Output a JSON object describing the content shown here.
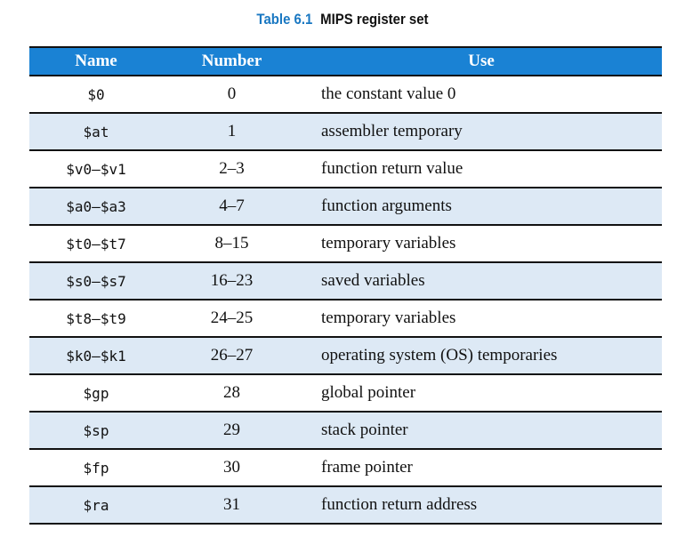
{
  "caption": {
    "number": "Table 6.1",
    "title": "MIPS register set"
  },
  "table": {
    "headers": [
      "Name",
      "Number",
      "Use"
    ],
    "rows": [
      {
        "name": "$0",
        "number": "0",
        "use": "the constant value 0"
      },
      {
        "name": "$at",
        "number": "1",
        "use": "assembler temporary"
      },
      {
        "name": "$v0–$v1",
        "number": "2–3",
        "use": "function return value"
      },
      {
        "name": "$a0–$a3",
        "number": "4–7",
        "use": "function arguments"
      },
      {
        "name": "$t0–$t7",
        "number": "8–15",
        "use": "temporary variables"
      },
      {
        "name": "$s0–$s7",
        "number": "16–23",
        "use": "saved variables"
      },
      {
        "name": "$t8–$t9",
        "number": "24–25",
        "use": "temporary variables"
      },
      {
        "name": "$k0–$k1",
        "number": "26–27",
        "use": "operating system (OS) temporaries"
      },
      {
        "name": "$gp",
        "number": "28",
        "use": "global pointer"
      },
      {
        "name": "$sp",
        "number": "29",
        "use": "stack pointer"
      },
      {
        "name": "$fp",
        "number": "30",
        "use": "frame pointer"
      },
      {
        "name": "$ra",
        "number": "31",
        "use": "function return address"
      }
    ]
  },
  "colors": {
    "header_bg": "#1a82d4",
    "caption_accent": "#1a78c2",
    "stripe_bg": "#dde9f5"
  }
}
